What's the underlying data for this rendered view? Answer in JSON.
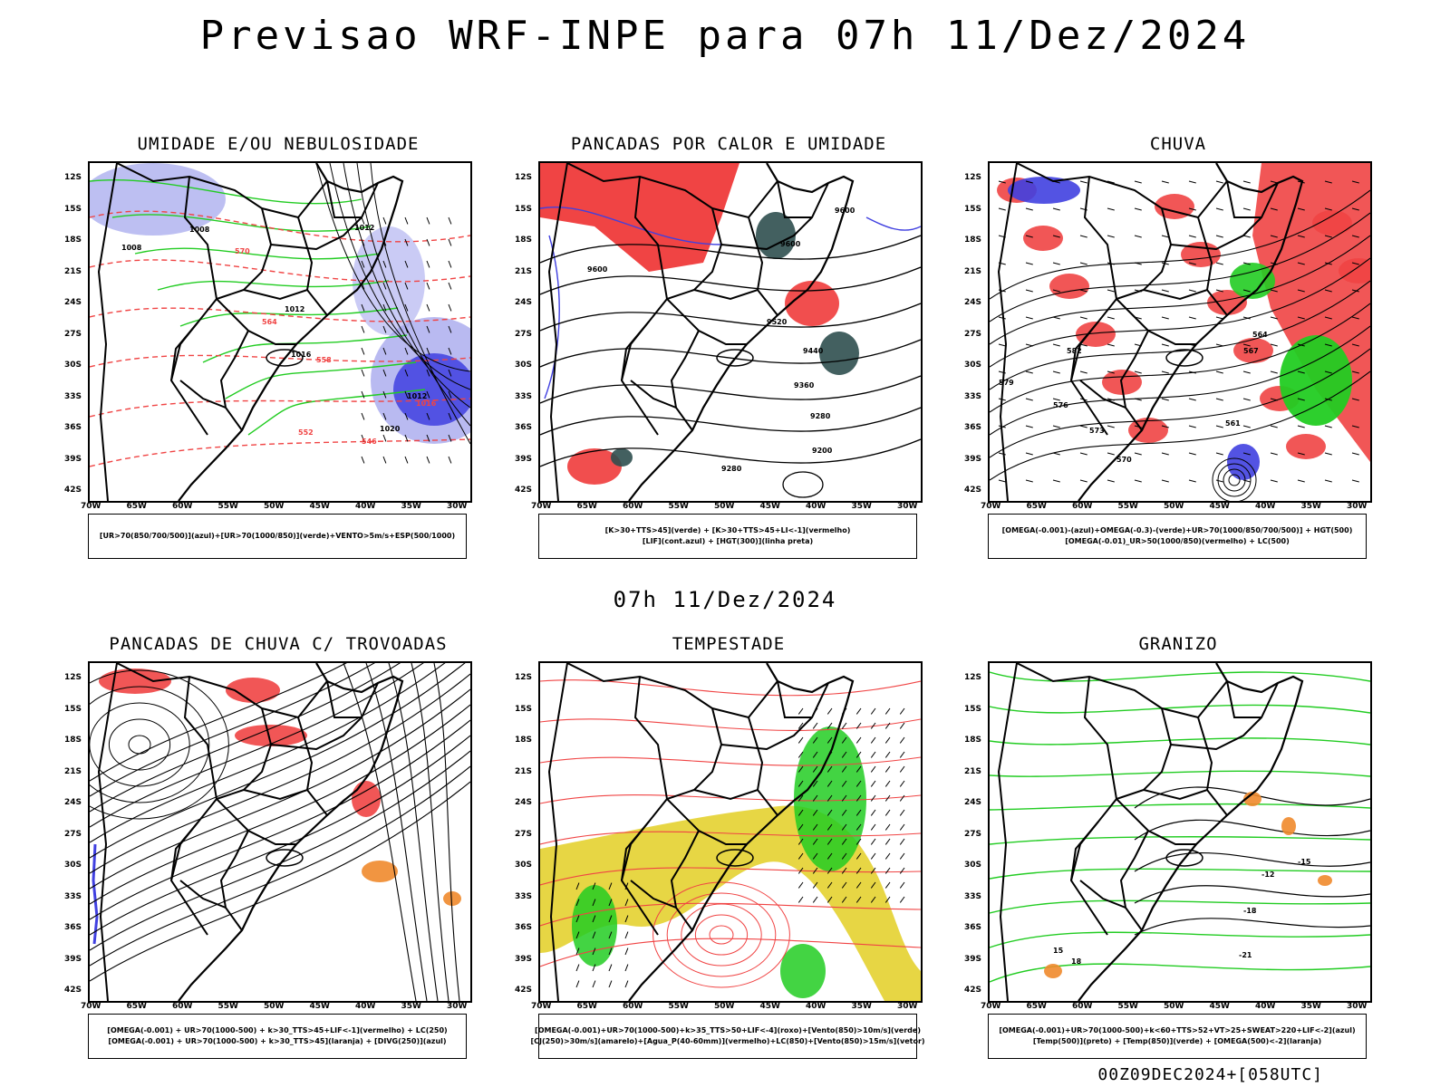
{
  "header": {
    "title": "Previsao WRF-INPE  para 07h 11/Dez/2024",
    "subtitle": "07h 11/Dez/2024",
    "footer": "00Z09DEC2024+[058UTC]"
  },
  "axes": {
    "lat_labels": [
      "12S",
      "15S",
      "18S",
      "21S",
      "24S",
      "27S",
      "30S",
      "33S",
      "36S",
      "39S",
      "42S"
    ],
    "lon_labels": [
      "70W",
      "65W",
      "60W",
      "55W",
      "50W",
      "45W",
      "40W",
      "35W",
      "30W"
    ]
  },
  "panels": [
    {
      "id": "umidade",
      "title": "UMIDADE E/OU NEBULOSIDADE",
      "legend": [
        "[UR>70(850/700/500)](azul)+[UR>70(1000/850)](verde)+VENTO>5m/s+ESP(500/1000)"
      ],
      "contour_labels": [
        "1012",
        "1008",
        "1008",
        "1012",
        "1016",
        "1020",
        "1012",
        "1016",
        "570",
        "564",
        "558",
        "552",
        "546"
      ]
    },
    {
      "id": "pancadas-calor",
      "title": "PANCADAS POR CALOR E UMIDADE",
      "legend": [
        "[K>30+TTS>45](verde) + [K>30+TTS>45+LI<-1](vermelho)",
        "[LIF](cont.azul) + [HGT(300)](linha preta)"
      ],
      "contour_labels": [
        "9600",
        "9600",
        "9600",
        "9520",
        "9440",
        "9360",
        "9280",
        "9200",
        "9280"
      ]
    },
    {
      "id": "chuva",
      "title": "CHUVA",
      "legend": [
        "[OMEGA(-0.001)-(azul)+OMEGA(-0.3)-(verde)+UR>70(1000/850/700/500)] + HGT(500)",
        "[OMEGA(-0.01)_UR>50(1000/850)(vermelho) + LC(500)"
      ],
      "contour_labels": [
        "582",
        "579",
        "576",
        "573",
        "570",
        "567",
        "564",
        "561"
      ]
    },
    {
      "id": "pancadas-trovoadas",
      "title": "PANCADAS DE CHUVA C/ TROVOADAS",
      "legend": [
        "[OMEGA(-0.001) + UR>70(1000-500) + k>30_TTS>45+LIF<-1](vermelho) + LC(250)",
        "[OMEGA(-0.001) + UR>70(1000-500) + k>30_TTS>45](laranja) + [DIVG(250)](azul)"
      ],
      "contour_labels": []
    },
    {
      "id": "tempestade",
      "title": "TEMPESTADE",
      "legend": [
        "[OMEGA(-0.001)+UR>70(1000-500)+k>35_TTS>50+LIF<-4](roxo)+[Vento(850)>10m/s](verde)",
        "[CJ(250)>30m/s](amarelo)+[Agua_P(40-60mm)](vermelho)+LC(850)+[Vento(850)>15m/s](vetor)"
      ],
      "contour_labels": []
    },
    {
      "id": "granizo",
      "title": "GRANIZO",
      "legend": [
        "[OMEGA(-0.001)+UR>70(1000-500)+k<60+TTS>52+VT>25+SWEAT>220+LIF<-2](azul)",
        "[Temp(500)](preto) + [Temp(850)](verde) + [OMEGA(500)<-2](laranja)"
      ],
      "contour_labels": [
        "-15",
        "-12",
        "-18",
        "-21",
        "15",
        "18"
      ]
    }
  ],
  "colors": {
    "humidity_blue": "#a7a9ee",
    "deep_blue": "#4040e0",
    "green": "#22cc22",
    "red": "#f04444",
    "dark_teal": "#2f4f4f",
    "yellow": "#e6d43a",
    "orange": "#f08a2c"
  }
}
